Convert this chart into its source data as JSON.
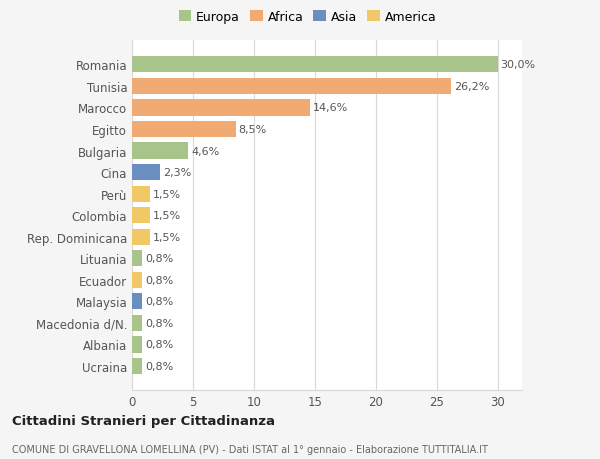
{
  "countries": [
    "Romania",
    "Tunisia",
    "Marocco",
    "Egitto",
    "Bulgaria",
    "Cina",
    "Perù",
    "Colombia",
    "Rep. Dominicana",
    "Lituania",
    "Ecuador",
    "Malaysia",
    "Macedonia d/N.",
    "Albania",
    "Ucraina"
  ],
  "values": [
    30.0,
    26.2,
    14.6,
    8.5,
    4.6,
    2.3,
    1.5,
    1.5,
    1.5,
    0.8,
    0.8,
    0.8,
    0.8,
    0.8,
    0.8
  ],
  "labels": [
    "30,0%",
    "26,2%",
    "14,6%",
    "8,5%",
    "4,6%",
    "2,3%",
    "1,5%",
    "1,5%",
    "1,5%",
    "0,8%",
    "0,8%",
    "0,8%",
    "0,8%",
    "0,8%",
    "0,8%"
  ],
  "colors": [
    "#a8c48a",
    "#f0aa72",
    "#f0aa72",
    "#f0aa72",
    "#a8c48a",
    "#6a8ebf",
    "#f0c866",
    "#f0c866",
    "#f0c866",
    "#a8c48a",
    "#f0c866",
    "#6a8ebf",
    "#a8c48a",
    "#a8c48a",
    "#a8c48a"
  ],
  "legend_labels": [
    "Europa",
    "Africa",
    "Asia",
    "America"
  ],
  "legend_colors": [
    "#a8c48a",
    "#f0aa72",
    "#6a8ebf",
    "#f0c866"
  ],
  "title": "Cittadini Stranieri per Cittadinanza",
  "subtitle": "COMUNE DI GRAVELLONA LOMELLINA (PV) - Dati ISTAT al 1° gennaio - Elaborazione TUTTITALIA.IT",
  "xlim": [
    0,
    32
  ],
  "xticks": [
    0,
    5,
    10,
    15,
    20,
    25,
    30
  ],
  "background_color": "#f5f5f5",
  "bar_background": "#ffffff",
  "grid_color": "#d8d8d8"
}
